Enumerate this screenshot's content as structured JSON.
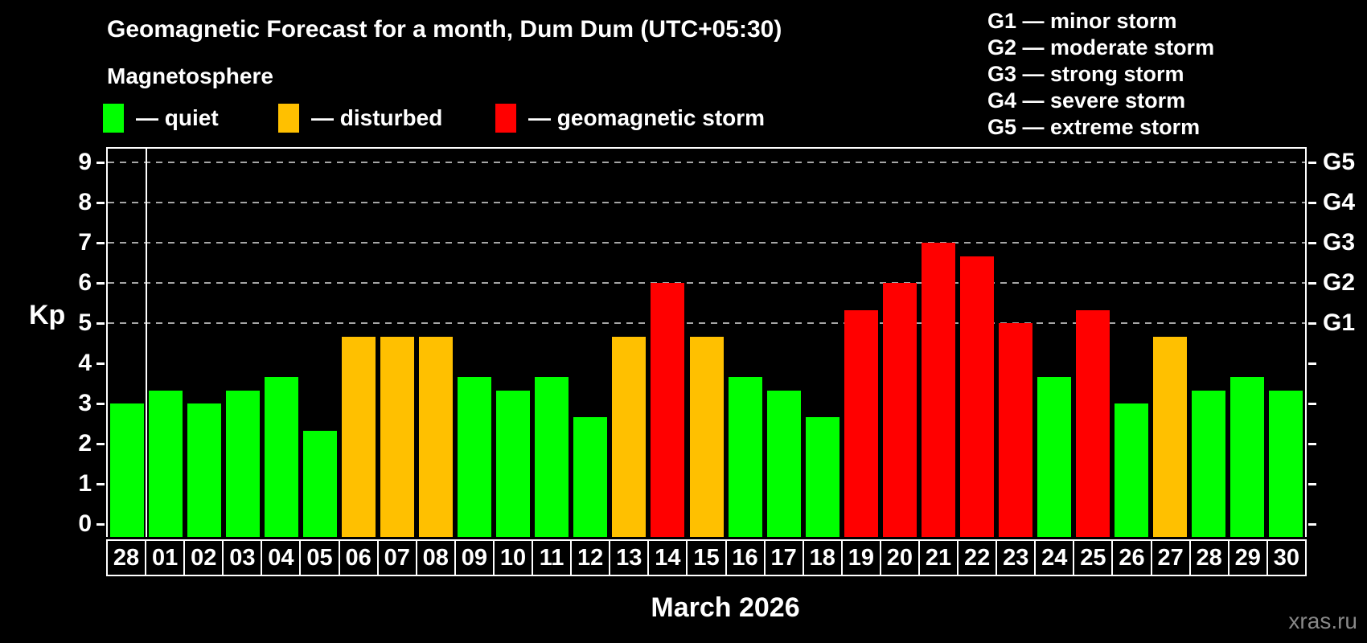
{
  "title": "Geomagnetic Forecast for a month, Dum Dum (UTC+05:30)",
  "subtitle": "Magnetosphere",
  "legend": {
    "quiet_label": "— quiet",
    "disturbed_label": "— disturbed",
    "storm_label": "— geomagnetic storm"
  },
  "g_legend": [
    "G1 — minor storm",
    "G2 — moderate storm",
    "G3 — strong storm",
    "G4 — severe storm",
    "G5 — extreme storm"
  ],
  "colors": {
    "quiet": "#00ff00",
    "disturbed": "#ffc000",
    "storm": "#ff0000",
    "grid": "#a6a6a6",
    "frame": "#ffffff",
    "watermark": "#888888"
  },
  "y_axis": {
    "label": "Kp",
    "ticks": [
      0,
      1,
      2,
      3,
      4,
      5,
      6,
      7,
      8,
      9
    ]
  },
  "right_axis": {
    "ticks": [
      0,
      1,
      2,
      3,
      4,
      5,
      6,
      7,
      8,
      9
    ],
    "labels": [
      {
        "value": 5,
        "text": "G1"
      },
      {
        "value": 6,
        "text": "G2"
      },
      {
        "value": 7,
        "text": "G3"
      },
      {
        "value": 8,
        "text": "G4"
      },
      {
        "value": 9,
        "text": "G5"
      }
    ]
  },
  "footer": {
    "month_label": "March 2026",
    "watermark": "xras.ru"
  },
  "chart_data": {
    "type": "bar",
    "title": "Geomagnetic Forecast for a month, Dum Dum (UTC+05:30)",
    "subtitle": "Magnetosphere",
    "xlabel": "March 2026",
    "ylabel": "Kp",
    "ylim": [
      0,
      9.4
    ],
    "grid": "dashed horizontal at storm levels",
    "gridlines_at": [
      5,
      6,
      7,
      8,
      9
    ],
    "legend_position": "top-left",
    "categories": [
      "28",
      "01",
      "02",
      "03",
      "04",
      "05",
      "06",
      "07",
      "08",
      "09",
      "10",
      "11",
      "12",
      "13",
      "14",
      "15",
      "16",
      "17",
      "18",
      "19",
      "20",
      "21",
      "22",
      "23",
      "24",
      "25",
      "26",
      "27",
      "28",
      "29",
      "30"
    ],
    "values": [
      3.0,
      3.33,
      3.0,
      3.33,
      3.67,
      2.33,
      4.67,
      4.67,
      4.67,
      3.67,
      3.33,
      3.67,
      2.67,
      4.67,
      6.0,
      4.67,
      3.67,
      3.33,
      2.67,
      5.33,
      6.0,
      7.0,
      6.67,
      5.0,
      3.67,
      5.33,
      3.0,
      4.67,
      3.33,
      3.67,
      3.33
    ],
    "statuses": [
      "quiet",
      "quiet",
      "quiet",
      "quiet",
      "quiet",
      "quiet",
      "disturbed",
      "disturbed",
      "disturbed",
      "quiet",
      "quiet",
      "quiet",
      "quiet",
      "disturbed",
      "storm",
      "disturbed",
      "quiet",
      "quiet",
      "quiet",
      "storm",
      "storm",
      "storm",
      "storm",
      "storm",
      "quiet",
      "storm",
      "quiet",
      "disturbed",
      "quiet",
      "quiet",
      "quiet"
    ],
    "prev_month_bar_count": 1
  }
}
